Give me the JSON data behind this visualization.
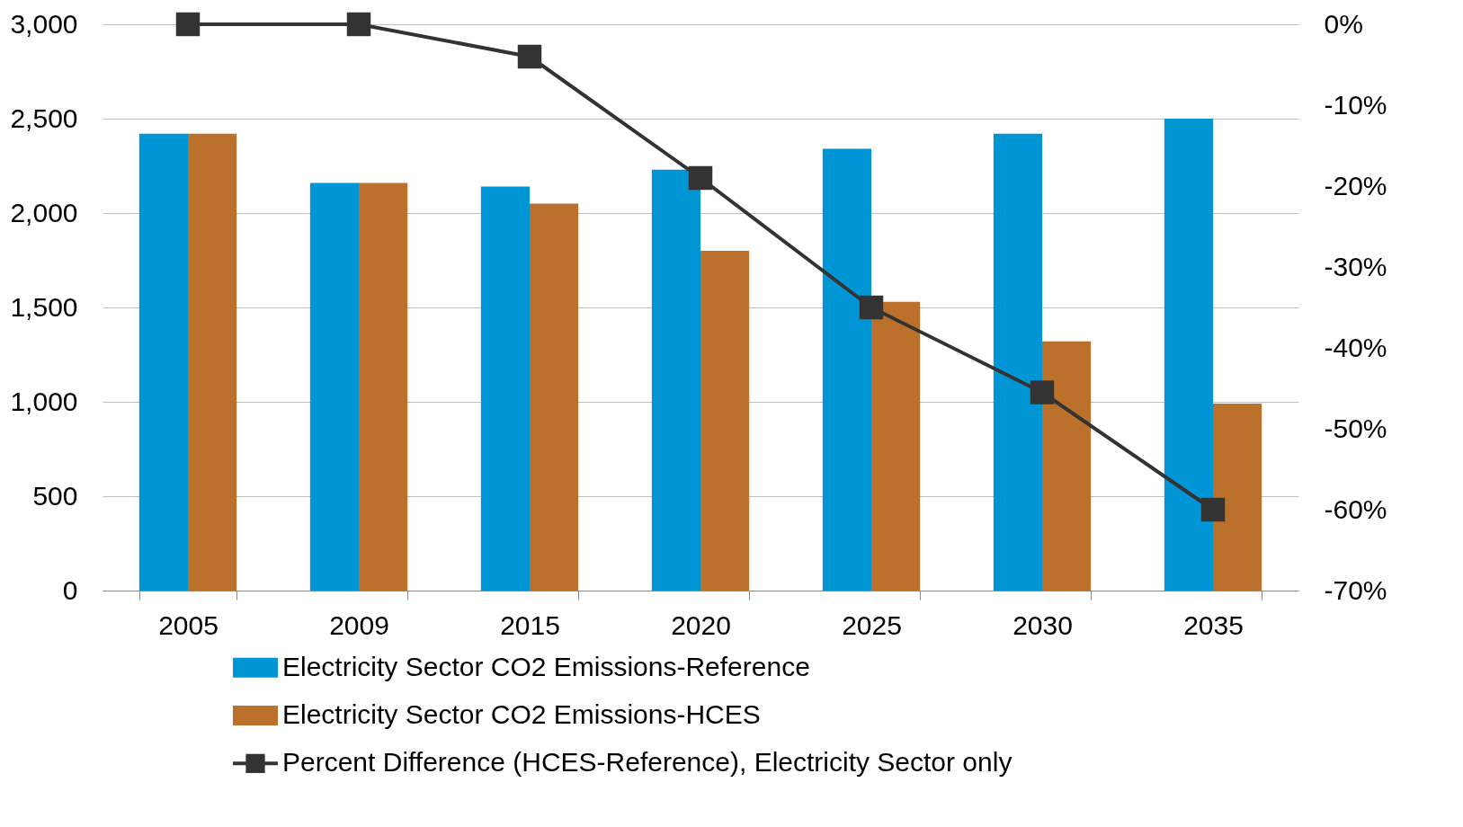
{
  "chart_data": {
    "type": "bar",
    "categories": [
      "2005",
      "2009",
      "2015",
      "2020",
      "2025",
      "2030",
      "2035"
    ],
    "series": [
      {
        "name": "Electricity Sector CO2 Emissions-Reference",
        "color": "#0096d6",
        "values": [
          2420,
          2160,
          2140,
          2230,
          2340,
          2420,
          2500
        ]
      },
      {
        "name": "Electricity Sector CO2 Emissions-HCES",
        "color": "#bb712c",
        "values": [
          2420,
          2160,
          2050,
          1800,
          1530,
          1320,
          990
        ]
      },
      {
        "name": "Percent Difference (HCES-Reference), Electricity Sector only",
        "type": "line",
        "axis": "y2",
        "color": "#333333",
        "marker": "square",
        "line_style": "solid",
        "values": [
          0,
          0,
          -4,
          -19,
          -35,
          -45.5,
          -60
        ]
      }
    ],
    "ylim": [
      0,
      3000
    ],
    "yticks": [
      0,
      500,
      {
        "value": 1000,
        "label": "1,000"
      },
      {
        "value": 1500,
        "label": "1,500"
      },
      {
        "value": 2000,
        "label": "2,000"
      },
      {
        "value": 2500,
        "label": "2,500"
      },
      {
        "value": 3000,
        "label": "3,000"
      }
    ],
    "y2lim": [
      -70,
      0
    ],
    "y2ticks": [
      {
        "value": 0,
        "label": "0%"
      },
      {
        "value": -10,
        "label": "-10%"
      },
      {
        "value": -20,
        "label": "-20%"
      },
      {
        "value": -30,
        "label": "-30%"
      },
      {
        "value": -40,
        "label": "-40%"
      },
      {
        "value": -50,
        "label": "-50%"
      },
      {
        "value": -60,
        "label": "-60%"
      },
      {
        "value": -70,
        "label": "-70%"
      }
    ],
    "grid": "y",
    "legend": "bottom"
  }
}
